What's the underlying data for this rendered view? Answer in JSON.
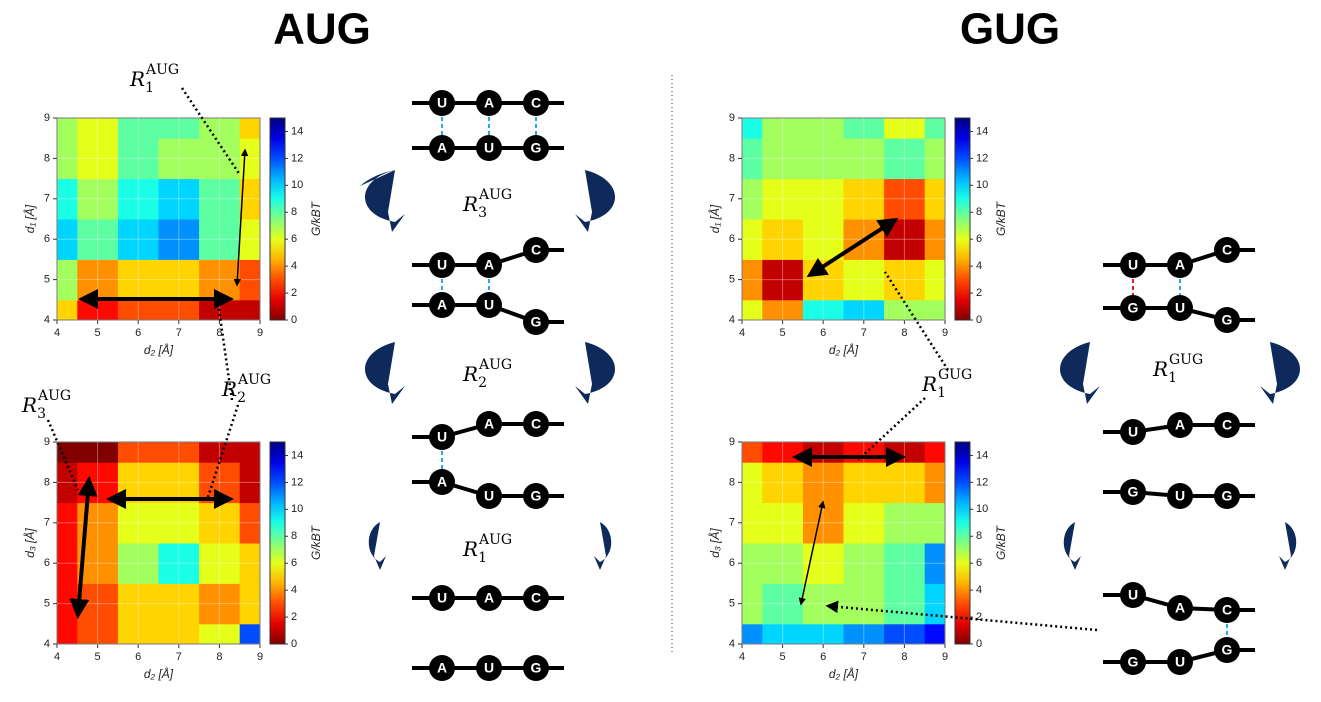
{
  "headings": [
    "AUG",
    "GUG"
  ],
  "annotations": [
    {
      "symbol": "R",
      "sub": "1",
      "sup": "AUG"
    },
    {
      "symbol": "R",
      "sub": "2",
      "sup": "AUG"
    },
    {
      "symbol": "R",
      "sub": "3",
      "sup": "AUG"
    },
    {
      "symbol": "R",
      "sub": "1",
      "sup": "GUG"
    },
    {
      "symbol": "R",
      "sub": "3",
      "sup": "AUG"
    },
    {
      "symbol": "R",
      "sub": "2",
      "sup": "AUG"
    },
    {
      "symbol": "R",
      "sub": "1",
      "sup": "AUG"
    },
    {
      "symbol": "R",
      "sub": "1",
      "sup": "GUG"
    }
  ],
  "diagrams": [
    {
      "top": [
        "U",
        "A",
        "C"
      ],
      "bottom": [
        "A",
        "U",
        "G"
      ]
    },
    {
      "top": [
        "U",
        "A",
        "C"
      ],
      "bottom": [
        "A",
        "U",
        "G"
      ]
    },
    {
      "top": [
        "U",
        "A",
        "C"
      ],
      "bottom": [
        "A",
        "U",
        "G"
      ]
    },
    {
      "top": [
        "U",
        "A",
        "C"
      ],
      "bottom": [
        "A",
        "U",
        "G"
      ]
    },
    {
      "top": [
        "U",
        "A",
        "C"
      ],
      "bottom": [
        "G",
        "U",
        "G"
      ]
    },
    {
      "top": [
        "U",
        "A",
        "C"
      ],
      "bottom": [
        "G",
        "U",
        "G"
      ]
    },
    {
      "top": [
        "U",
        "A",
        "C"
      ],
      "bottom": [
        "G",
        "U",
        "G"
      ]
    }
  ],
  "chart_data": [
    {
      "type": "heatmap",
      "xlabel": "d₂ [Å]",
      "ylabel": "d₁ [Å]",
      "colorbar_label": "G/kBT",
      "colormap": "jet_r",
      "grid": true,
      "x": [
        4,
        5,
        6,
        7,
        8,
        9
      ],
      "y": [
        4,
        5,
        6,
        7,
        8,
        9
      ],
      "xlim": [
        4,
        9
      ],
      "ylim": [
        4,
        9
      ],
      "xticks": [
        4,
        5,
        6,
        7,
        8,
        9
      ],
      "yticks": [
        4,
        5,
        6,
        7,
        8,
        9
      ],
      "clim": [
        0,
        15
      ],
      "cticks": [
        0,
        2,
        4,
        6,
        8,
        10,
        12,
        14
      ],
      "values": [
        [
          5,
          2,
          3,
          3,
          1,
          1
        ],
        [
          7,
          4,
          5,
          5,
          4,
          3
        ],
        [
          10,
          8,
          10,
          11,
          8,
          6
        ],
        [
          9,
          7,
          9,
          10,
          8,
          5
        ],
        [
          7,
          6,
          8,
          7,
          7,
          6
        ],
        [
          7,
          6,
          8,
          8,
          7,
          5
        ]
      ]
    },
    {
      "type": "heatmap",
      "xlabel": "d₂ [Å]",
      "ylabel": "d₃ [Å]",
      "colorbar_label": "G/kBT",
      "colormap": "jet_r",
      "grid": true,
      "x": [
        4,
        5,
        6,
        7,
        8,
        9
      ],
      "y": [
        4,
        5,
        6,
        7,
        8,
        9
      ],
      "xlim": [
        4,
        9
      ],
      "ylim": [
        4,
        9
      ],
      "xticks": [
        4,
        5,
        6,
        7,
        8,
        9
      ],
      "yticks": [
        4,
        5,
        6,
        7,
        8,
        9
      ],
      "clim": [
        0,
        15
      ],
      "cticks": [
        0,
        2,
        4,
        6,
        8,
        10,
        12,
        14
      ],
      "values": [
        [
          2,
          3,
          5,
          5,
          6,
          12
        ],
        [
          2,
          3,
          5,
          5,
          4,
          5
        ],
        [
          2,
          4,
          7,
          9,
          6,
          5
        ],
        [
          2,
          4,
          6,
          6,
          5,
          3
        ],
        [
          1,
          2,
          5,
          5,
          3,
          1
        ],
        [
          0,
          0,
          3,
          3,
          1,
          1
        ]
      ]
    },
    {
      "type": "heatmap",
      "xlabel": "d₂ [Å]",
      "ylabel": "d₁ [Å]",
      "colorbar_label": "G/kBT",
      "colormap": "jet_r",
      "grid": true,
      "x": [
        4,
        5,
        6,
        7,
        8,
        9
      ],
      "y": [
        4,
        5,
        6,
        7,
        8,
        9
      ],
      "xlim": [
        4,
        9
      ],
      "ylim": [
        4,
        9
      ],
      "xticks": [
        4,
        5,
        6,
        7,
        8,
        9
      ],
      "yticks": [
        4,
        5,
        6,
        7,
        8,
        9
      ],
      "clim": [
        0,
        15
      ],
      "cticks": [
        0,
        2,
        4,
        6,
        8,
        10,
        12,
        14
      ],
      "values": [
        [
          6,
          4,
          9,
          10,
          7,
          7
        ],
        [
          4,
          1,
          5,
          6,
          5,
          6
        ],
        [
          6,
          5,
          6,
          4,
          1,
          4
        ],
        [
          7,
          6,
          6,
          5,
          3,
          5
        ],
        [
          8,
          7,
          7,
          7,
          8,
          7
        ],
        [
          9,
          7,
          7,
          8,
          6,
          8
        ]
      ]
    },
    {
      "type": "heatmap",
      "xlabel": "d₂ [Å]",
      "ylabel": "d₃ [Å]",
      "colorbar_label": "G/kBT",
      "colormap": "jet_r",
      "grid": true,
      "x": [
        4,
        5,
        6,
        7,
        8,
        9
      ],
      "y": [
        4,
        5,
        6,
        7,
        8,
        9
      ],
      "xlim": [
        4,
        9
      ],
      "ylim": [
        4,
        9
      ],
      "xticks": [
        4,
        5,
        6,
        7,
        8,
        9
      ],
      "yticks": [
        4,
        5,
        6,
        7,
        8,
        9
      ],
      "clim": [
        0,
        15
      ],
      "cticks": [
        0,
        2,
        4,
        6,
        8,
        10,
        12,
        14
      ],
      "values": [
        [
          11,
          10,
          10,
          11,
          12,
          13
        ],
        [
          7,
          8,
          7,
          7,
          8,
          10
        ],
        [
          7,
          7,
          6,
          7,
          8,
          11
        ],
        [
          6,
          6,
          4,
          6,
          7,
          7
        ],
        [
          6,
          5,
          4,
          5,
          5,
          4
        ],
        [
          3,
          2,
          1,
          2,
          1,
          2
        ]
      ]
    }
  ]
}
